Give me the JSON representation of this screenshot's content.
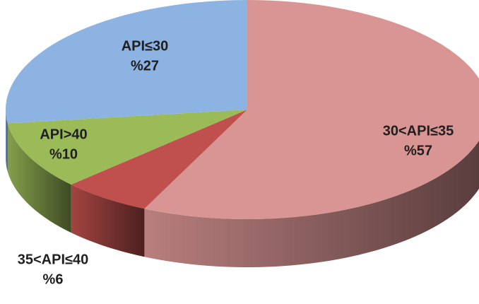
{
  "chart_data": {
    "type": "pie",
    "categories": [
      "30<API≤35",
      "35<API≤40",
      "API>40",
      "API≤30"
    ],
    "values": [
      57,
      6,
      10,
      27
    ],
    "value_labels": [
      "%57",
      "%6",
      "%10",
      "%27"
    ],
    "colors": [
      "#d99594",
      "#c0504d",
      "#9bbb59",
      "#8db3e2"
    ]
  }
}
